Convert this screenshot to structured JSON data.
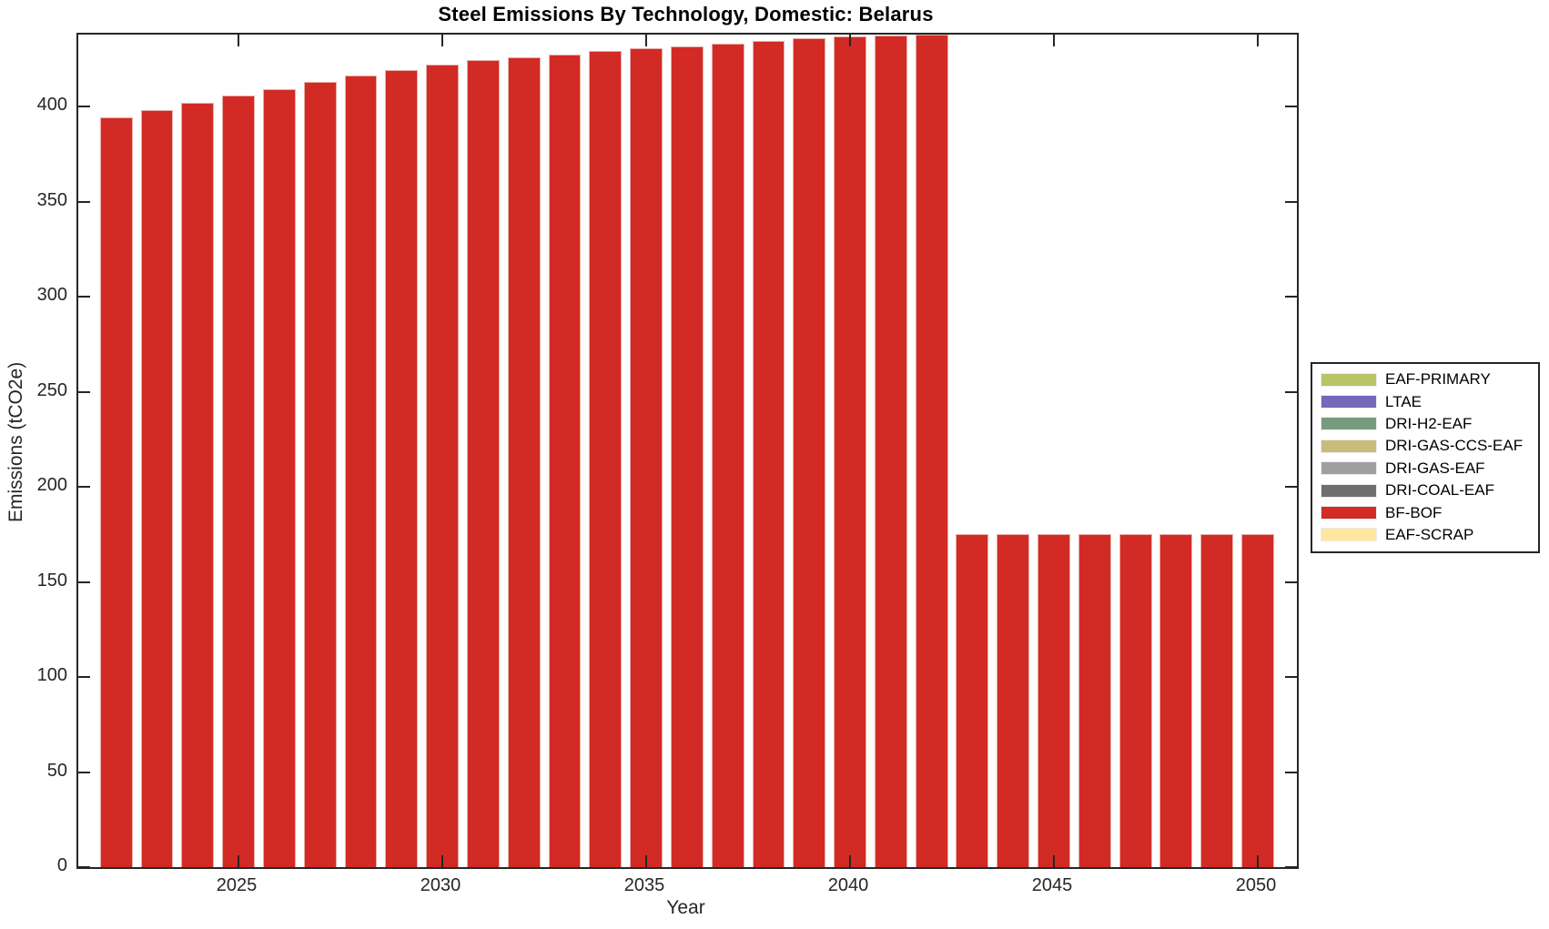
{
  "figure": {
    "background": "#ffffff",
    "axis_color": "#262626"
  },
  "chart_data": {
    "type": "bar",
    "title": "Steel Emissions By Technology, Domestic: Belarus",
    "xlabel": "Year",
    "ylabel": "Emissions (tCO2e)",
    "grid": false,
    "box": true,
    "tick_direction": "in",
    "xlim": [
      2021.07,
      2050.96
    ],
    "ylim": [
      0,
      438
    ],
    "bar_rel_width": 0.8,
    "x": [
      2022,
      2023,
      2024,
      2025,
      2026,
      2027,
      2028,
      2029,
      2030,
      2031,
      2032,
      2033,
      2034,
      2035,
      2036,
      2037,
      2038,
      2039,
      2040,
      2041,
      2042,
      2043,
      2044,
      2045,
      2046,
      2047,
      2048,
      2049,
      2050
    ],
    "series": [
      {
        "name": "BF-BOF",
        "color": "#d22a24",
        "edge_color": "#e9aea7",
        "values": [
          394.5,
          398.4,
          402.2,
          405.9,
          409.5,
          413.0,
          416.3,
          419.5,
          422.4,
          424.5,
          426.1,
          427.7,
          429.2,
          430.6,
          432.0,
          433.4,
          434.7,
          436.0,
          437.0,
          437.6,
          438.0,
          175.0,
          175.0,
          175.0,
          175.0,
          175.0,
          175.0,
          175.0,
          175.0
        ]
      }
    ],
    "xticks": {
      "values": [
        2025,
        2030,
        2035,
        2040,
        2045,
        2050
      ],
      "labels": [
        "2025",
        "2030",
        "2035",
        "2040",
        "2045",
        "2050"
      ]
    },
    "yticks": {
      "values": [
        0,
        50,
        100,
        150,
        200,
        250,
        300,
        350,
        400
      ],
      "labels": [
        "0",
        "50",
        "100",
        "150",
        "200",
        "250",
        "300",
        "350",
        "400"
      ]
    },
    "legend": {
      "position": "right-outside",
      "entries": [
        {
          "label": "EAF-PRIMARY",
          "color": "#b9c465"
        },
        {
          "label": "LTAE",
          "color": "#7568bd"
        },
        {
          "label": "DRI-H2-EAF",
          "color": "#789b7e"
        },
        {
          "label": "DRI-GAS-CCS-EAF",
          "color": "#c6bd7a"
        },
        {
          "label": "DRI-GAS-EAF",
          "color": "#a09fa0"
        },
        {
          "label": "DRI-COAL-EAF",
          "color": "#6e6e6e"
        },
        {
          "label": "BF-BOF",
          "color": "#d22a24"
        },
        {
          "label": "EAF-SCRAP",
          "color": "#ffe79e"
        }
      ]
    }
  }
}
